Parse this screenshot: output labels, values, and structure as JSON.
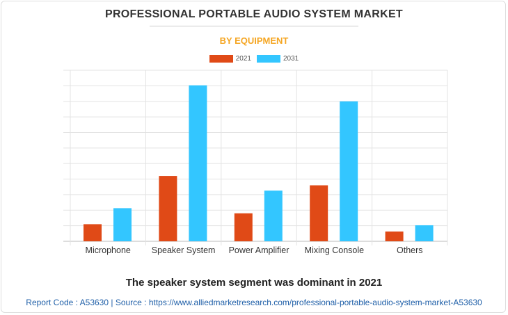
{
  "chart_data": {
    "type": "bar",
    "title": "PROFESSIONAL PORTABLE AUDIO SYSTEM MARKET",
    "subtitle": "BY EQUIPMENT",
    "categories": [
      "Microphone",
      "Speaker System",
      "Power Amplifier",
      "Mixing Console",
      "Others"
    ],
    "series": [
      {
        "name": "2021",
        "color": "#e04a17",
        "values": [
          1.1,
          4.2,
          1.8,
          3.6,
          0.63
        ]
      },
      {
        "name": "2031",
        "color": "#33c6ff",
        "values": [
          2.13,
          10.03,
          3.26,
          9.0,
          1.03
        ]
      }
    ],
    "ylim": [
      0,
      11
    ],
    "y_ticks_labeled": false,
    "grid": true,
    "legend_position": "top-center",
    "xlabel": "",
    "ylabel": ""
  },
  "note": "The speaker system segment was dominant in 2021",
  "footer": "Report Code : A53630  |  Source : https://www.alliedmarketresearch.com/professional-portable-audio-system-market-A53630"
}
